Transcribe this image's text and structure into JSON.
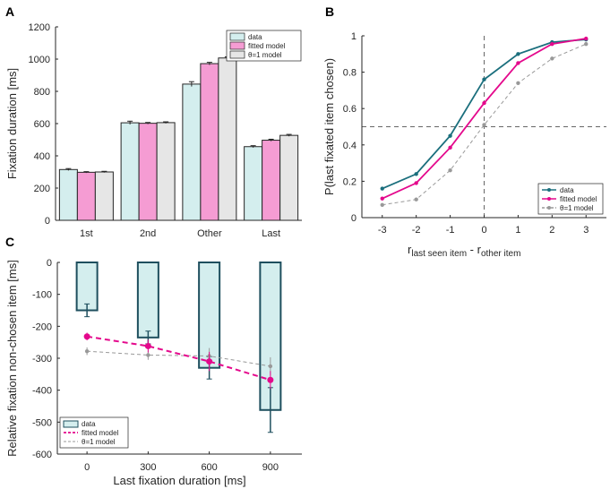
{
  "chart_data": [
    {
      "panel": "A",
      "type": "bar",
      "categories": [
        "1st",
        "2nd",
        "Other",
        "Last"
      ],
      "series": [
        {
          "name": "data",
          "values": [
            315,
            605,
            845,
            457
          ],
          "errors": [
            6,
            10,
            15,
            6
          ],
          "color": "#d4eeee"
        },
        {
          "name": "fitted model",
          "values": [
            298,
            602,
            972,
            497
          ],
          "errors": [
            4,
            5,
            8,
            6
          ],
          "color": "#f59cd3"
        },
        {
          "name": "θ=1 model",
          "values": [
            300,
            606,
            1007,
            527
          ],
          "errors": [
            4,
            5,
            7,
            6
          ],
          "color": "#e6e6e6"
        }
      ],
      "ylabel": "Fixation duration [ms]",
      "ylim": [
        0,
        1200
      ],
      "yticks": [
        "0",
        "200",
        "400",
        "600",
        "800",
        "1000",
        "1200"
      ],
      "legend_position": "top-right"
    },
    {
      "panel": "B",
      "type": "line",
      "x": [
        -3,
        -2,
        -1,
        0,
        1,
        2,
        3
      ],
      "series": [
        {
          "name": "data",
          "values": [
            0.16,
            0.24,
            0.45,
            0.76,
            0.9,
            0.965,
            0.98
          ],
          "color": "#1b6f7d"
        },
        {
          "name": "fitted model",
          "values": [
            0.105,
            0.19,
            0.385,
            0.63,
            0.85,
            0.955,
            0.985
          ],
          "color": "#e4088c"
        },
        {
          "name": "θ=1 model",
          "values": [
            0.07,
            0.1,
            0.26,
            0.51,
            0.74,
            0.875,
            0.955
          ],
          "color": "#999999"
        }
      ],
      "xlabel_main": "r",
      "xlabel_sub1": "last seen item",
      "xlabel_mid": " - r",
      "xlabel_sub2": "other item",
      "ylabel": "P(last fixated item chosen)",
      "xlim": [
        -3.6,
        3.6
      ],
      "ylim": [
        0,
        1
      ],
      "xticks": [
        "-3",
        "-2",
        "-1",
        "0",
        "1",
        "2",
        "3"
      ],
      "yticks": [
        "0",
        "0.2",
        "0.4",
        "0.6",
        "0.8",
        "1"
      ],
      "legend_position": "bottom-right"
    },
    {
      "panel": "C",
      "type": "bar",
      "categories": [
        "0",
        "300",
        "600",
        "900"
      ],
      "series": [
        {
          "name": "data",
          "type": "bar",
          "values": [
            -150,
            -235,
            -330,
            -462
          ],
          "errors": [
            20,
            20,
            35,
            70
          ],
          "color": "#d4eeee"
        },
        {
          "name": "fitted model",
          "type": "line",
          "values": [
            -232,
            -262,
            -310,
            -368
          ],
          "errors": [
            12,
            20,
            30,
            28
          ],
          "color": "#e4088c"
        },
        {
          "name": "θ=1 model",
          "type": "line",
          "values": [
            -278,
            -290,
            -293,
            -325
          ],
          "errors": [
            12,
            15,
            25,
            28
          ],
          "color": "#999999"
        }
      ],
      "xlabel": "Last fixation duration [ms]",
      "ylabel": "Relative fixation non-chosen item [ms]",
      "ylim": [
        -600,
        0
      ],
      "yticks": [
        "0",
        "-100",
        "-200",
        "-300",
        "-400",
        "-500",
        "-600"
      ],
      "legend_position": "bottom-left"
    }
  ],
  "labels": {
    "a": "A",
    "b": "B",
    "c": "C"
  }
}
